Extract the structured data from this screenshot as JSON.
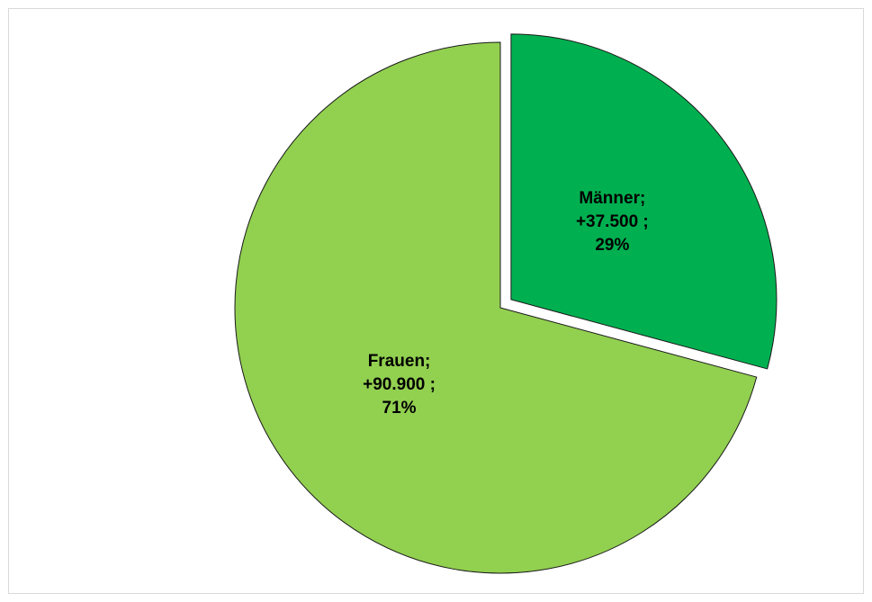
{
  "chart_data": {
    "type": "pie",
    "categories": [
      "Männer;",
      "Frauen;"
    ],
    "values": [
      37500,
      90900
    ],
    "value_labels": [
      "+37.500 ;",
      "+90.900 ;"
    ],
    "percents": [
      29,
      71
    ],
    "percent_labels": [
      "29%",
      "71%"
    ],
    "colors": [
      "#00b050",
      "#92d050"
    ]
  }
}
